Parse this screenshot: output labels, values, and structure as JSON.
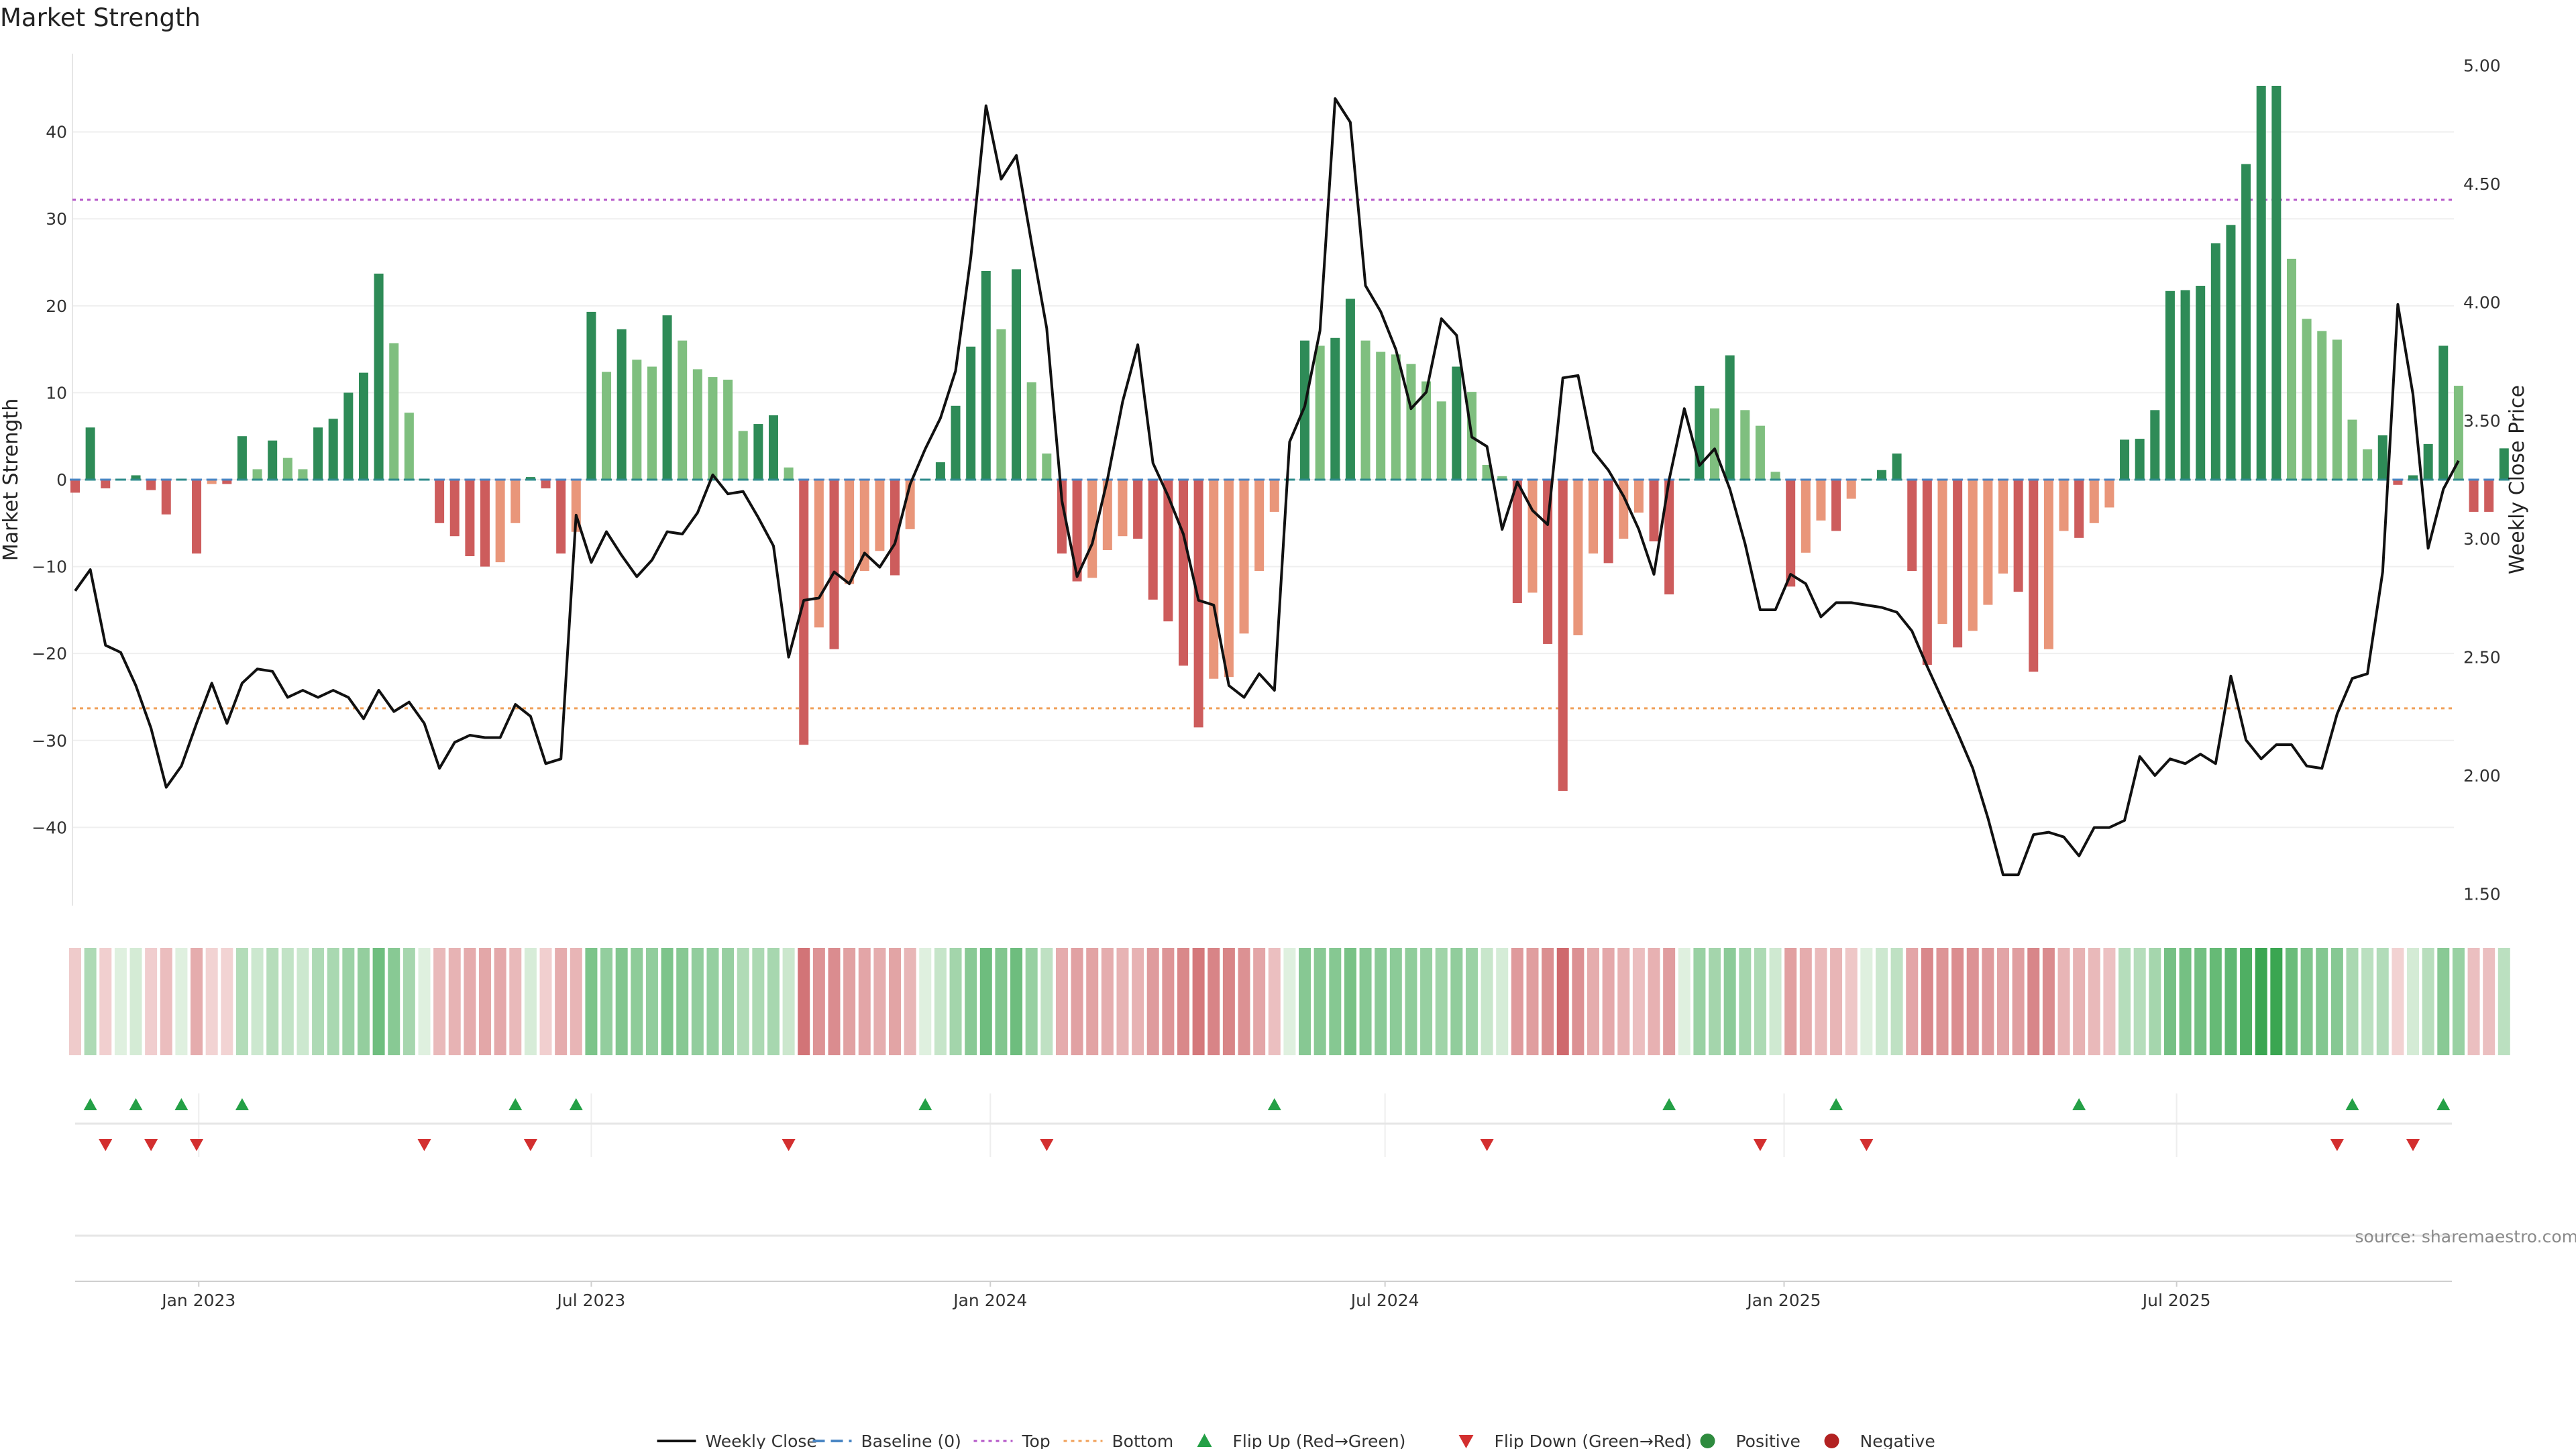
{
  "chart_data": {
    "type": "bar",
    "title": "Market Strength",
    "ylabel_left": "Market Strength",
    "ylabel_right": "Weekly Close Price",
    "source": "source: sharemaestro.com",
    "left_ylim": [
      -49,
      49
    ],
    "right_ylim": [
      1.45,
      5.05
    ],
    "left_ticks": [
      -40,
      -30,
      -20,
      -10,
      0,
      10,
      20,
      30,
      40
    ],
    "right_ticks": [
      "1.50",
      "2.00",
      "2.50",
      "3.00",
      "3.50",
      "4.00",
      "4.50",
      "5.00"
    ],
    "right_tick_values": [
      1.5,
      2.0,
      2.5,
      3.0,
      3.5,
      4.0,
      4.5,
      5.0
    ],
    "x_start": "2022-11-05",
    "x_ticks": [
      {
        "label": "Jan 2023",
        "date": "2023-01-01"
      },
      {
        "label": "Jul 2023",
        "date": "2023-07-01"
      },
      {
        "label": "Jan 2024",
        "date": "2024-01-01"
      },
      {
        "label": "Jul 2024",
        "date": "2024-07-01"
      },
      {
        "label": "Jan 2025",
        "date": "2025-01-01"
      },
      {
        "label": "Jul 2025",
        "date": "2025-07-01"
      }
    ],
    "top_line": 32.2,
    "bottom_line": -26.3,
    "strength": [
      -1.5,
      6,
      -1,
      0,
      0.5,
      -1.2,
      -4,
      0,
      -8.5,
      -0.5,
      -0.5,
      5,
      1.2,
      4.5,
      2.5,
      1.2,
      6,
      7,
      10,
      12.3,
      23.7,
      15.7,
      7.7,
      0,
      -5,
      -6.5,
      -8.8,
      -10,
      -9.5,
      -5,
      0.3,
      -1,
      -8.5,
      -6,
      19.3,
      12.4,
      17.3,
      13.8,
      13,
      18.9,
      16,
      12.7,
      11.8,
      11.5,
      5.6,
      6.4,
      7.4,
      1.4,
      -30.5,
      -17,
      -19.5,
      -12,
      -10.5,
      -8.2,
      -11,
      -5.7,
      0,
      2,
      8.5,
      15.3,
      24,
      17.3,
      24.2,
      11.2,
      3,
      -8.5,
      -11.7,
      -11.3,
      -8.1,
      -6.5,
      -6.8,
      -13.8,
      -16.3,
      -21.4,
      -28.5,
      -22.9,
      -22.7,
      -17.7,
      -10.5,
      -3.7,
      0,
      16,
      15.4,
      16.3,
      20.8,
      16,
      14.7,
      14.4,
      13.3,
      11.3,
      9,
      13,
      10.1,
      1.7,
      0.4,
      -14.2,
      -13,
      -18.9,
      -35.8,
      -17.9,
      -8.5,
      -9.6,
      -6.8,
      -3.8,
      -7.1,
      -13.2,
      0,
      10.8,
      8.2,
      14.3,
      8,
      6.2,
      0.9,
      -12.3,
      -8.4,
      -4.7,
      -5.9,
      -2.2,
      0,
      1.1,
      3,
      -10.5,
      -21.3,
      -16.6,
      -19.3,
      -17.4,
      -14.4,
      -10.8,
      -12.9,
      -22.1,
      -19.5,
      -5.9,
      -6.7,
      -5,
      -3.2,
      4.6,
      4.7,
      8,
      21.7,
      21.8,
      22.3,
      27.2,
      29.3,
      36.3,
      45.3,
      45.3,
      25.4,
      18.5,
      17.1,
      16.1,
      6.9,
      3.5,
      5.1,
      -0.6,
      0.5,
      4.1,
      15.4,
      10.8,
      -3.7,
      -3.7,
      3.6
    ],
    "weekly_close": [
      2.78,
      2.87,
      2.55,
      2.52,
      2.38,
      2.2,
      1.95,
      2.04,
      2.22,
      2.39,
      2.22,
      2.39,
      2.45,
      2.44,
      2.33,
      2.36,
      2.33,
      2.36,
      2.33,
      2.24,
      2.36,
      2.27,
      2.31,
      2.22,
      2.03,
      2.14,
      2.17,
      2.16,
      2.16,
      2.3,
      2.25,
      2.05,
      2.07,
      3.1,
      2.9,
      3.03,
      2.93,
      2.84,
      2.91,
      3.03,
      3.02,
      3.11,
      3.27,
      3.19,
      3.2,
      3.09,
      2.97,
      2.5,
      2.74,
      2.75,
      2.86,
      2.81,
      2.94,
      2.88,
      2.98,
      3.23,
      3.38,
      3.51,
      3.71,
      4.19,
      4.83,
      4.52,
      4.62,
      4.25,
      3.89,
      3.16,
      2.84,
      2.98,
      3.25,
      3.58,
      3.82,
      3.32,
      3.18,
      3.02,
      2.74,
      2.72,
      2.38,
      2.33,
      2.43,
      2.36,
      3.41,
      3.56,
      3.88,
      4.86,
      4.76,
      4.07,
      3.96,
      3.8,
      3.55,
      3.62,
      3.93,
      3.86,
      3.43,
      3.39,
      3.04,
      3.24,
      3.12,
      3.06,
      3.68,
      3.69,
      3.37,
      3.29,
      3.18,
      3.04,
      2.85,
      3.25,
      3.55,
      3.31,
      3.38,
      3.21,
      2.98,
      2.7,
      2.7,
      2.85,
      2.81,
      2.67,
      2.73,
      2.73,
      2.72,
      2.71,
      2.69,
      2.61,
      2.46,
      2.32,
      2.18,
      2.03,
      1.82,
      1.58,
      1.58,
      1.75,
      1.76,
      1.74,
      1.66,
      1.78,
      1.78,
      1.81,
      2.08,
      2.0,
      2.07,
      2.05,
      2.09,
      2.05,
      2.42,
      2.15,
      2.07,
      2.13,
      2.13,
      2.04,
      2.03,
      2.26,
      2.41,
      2.43,
      2.86,
      3.99,
      3.61,
      2.96,
      3.21,
      3.33
    ],
    "flip_up_weeks": [
      1,
      4,
      7,
      11,
      29,
      33,
      56,
      79,
      105,
      116,
      132,
      150,
      156
    ],
    "flip_down_weeks": [
      2,
      5,
      8,
      23,
      30,
      47,
      64,
      93,
      111,
      118,
      149,
      154
    ],
    "legend": [
      {
        "label": "Weekly Close",
        "symbol": "solid-line",
        "color": "#111111"
      },
      {
        "label": "Baseline (0)",
        "symbol": "dash-line",
        "color": "#4a86c4"
      },
      {
        "label": "Top",
        "symbol": "dot-line",
        "color": "#b557c8"
      },
      {
        "label": "Bottom",
        "symbol": "dot-line",
        "color": "#f0a05a"
      },
      {
        "label": "Flip Up (Red→Green)",
        "symbol": "up-triangle",
        "color": "#24a046"
      },
      {
        "label": "Flip Down (Green→Red)",
        "symbol": "down-triangle",
        "color": "#d32f2f"
      },
      {
        "label": "Positive",
        "symbol": "circle",
        "color": "#2e8b3e"
      },
      {
        "label": "Negative",
        "symbol": "circle",
        "color": "#b22222"
      }
    ],
    "colors": {
      "strong_green": "#2e8b57",
      "light_green": "#7fbf7f",
      "strong_red": "#cd5c5c",
      "light_red": "#e9967a",
      "baseline_positive": "#2e8b8b",
      "baseline_negative": "#4a86c4",
      "price_line": "#111111",
      "top_line": "#b557c8",
      "bottom_line": "#f0a05a",
      "flip_up": "#24a046",
      "flip_down": "#d32f2f"
    }
  }
}
